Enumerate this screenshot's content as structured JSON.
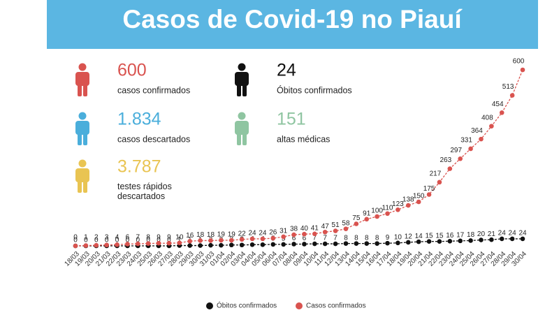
{
  "header": {
    "title": "Casos de Covid-19 no Piauí"
  },
  "stats": [
    {
      "value": "600",
      "label": "casos confirmados",
      "color": "#d9534f"
    },
    {
      "value": "1.834",
      "label": "casos descartados",
      "color": "#4aaedb"
    },
    {
      "value": "3.787",
      "label": "testes rápidos descartados",
      "color": "#e9c452"
    },
    {
      "value": "24",
      "label": "Óbitos confirmados",
      "color": "#111111"
    },
    {
      "value": "151",
      "label": "altas médicas",
      "color": "#8fc5a1"
    }
  ],
  "chart_data": {
    "type": "line",
    "categories": [
      "18/03",
      "19/03",
      "20/03",
      "21/03",
      "22/03",
      "23/03",
      "24/03",
      "25/03",
      "26/03",
      "27/03",
      "28/03",
      "29/03",
      "30/03",
      "31/03",
      "01/04",
      "02/04",
      "03/04",
      "04/04",
      "05/04",
      "06/04",
      "07/04",
      "08/04",
      "09/04",
      "10/04",
      "11/04",
      "12/04",
      "13/04",
      "14/04",
      "15/04",
      "16/04",
      "17/04",
      "18/04",
      "19/04",
      "20/04",
      "21/04",
      "22/04",
      "23/04",
      "24/04",
      "25/04",
      "26/04",
      "27/04",
      "28/04",
      "29/04",
      "30/04"
    ],
    "series": [
      {
        "name": "Óbitos confirmados",
        "color": "#111111",
        "values": [
          0,
          0,
          0,
          0,
          0,
          0,
          0,
          0,
          0,
          0,
          1,
          1,
          1,
          2,
          2,
          3,
          3,
          4,
          4,
          5,
          5,
          6,
          6,
          7,
          7,
          7,
          8,
          8,
          8,
          8,
          9,
          10,
          12,
          14,
          15,
          15,
          16,
          17,
          18,
          20,
          21,
          24,
          24,
          24
        ]
      },
      {
        "name": "Casos confirmados",
        "color": "#d9534f",
        "values": [
          0,
          1,
          2,
          3,
          4,
          6,
          7,
          8,
          9,
          9,
          10,
          16,
          18,
          18,
          19,
          19,
          22,
          24,
          24,
          26,
          31,
          38,
          40,
          41,
          47,
          51,
          58,
          75,
          91,
          100,
          110,
          123,
          138,
          150,
          175,
          217,
          263,
          297,
          331,
          364,
          408,
          454,
          513,
          600
        ]
      }
    ]
  }
}
